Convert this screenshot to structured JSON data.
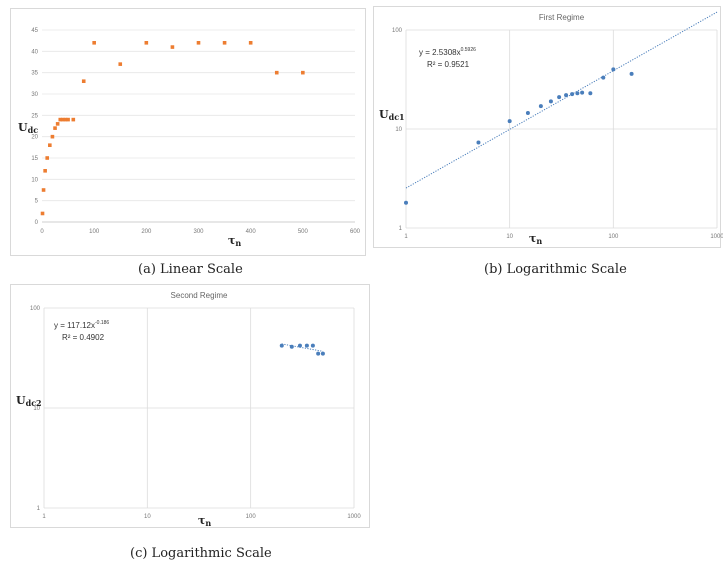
{
  "chart_data": [
    {
      "type": "scatter",
      "title": "",
      "xlabel": "τn",
      "ylabel": "Udc",
      "xlim": [
        0,
        600
      ],
      "ylim": [
        0,
        45
      ],
      "xticks": [
        "0",
        "100",
        "200",
        "300",
        "400",
        "500",
        "600"
      ],
      "yticks": [
        "0",
        "5",
        "10",
        "15",
        "20",
        "25",
        "30",
        "35",
        "40",
        "45"
      ],
      "grid": "horizontal",
      "color": "#ed7d31",
      "caption": "(a) Linear Scale",
      "series": [
        {
          "x": [
            1,
            3,
            6,
            10,
            15,
            20,
            25,
            30,
            35,
            40,
            45,
            50,
            60,
            80,
            100,
            150,
            200,
            250,
            300,
            350,
            400,
            450,
            500
          ],
          "y": [
            2,
            7.5,
            12,
            15,
            18,
            20,
            22,
            23,
            24,
            24,
            24,
            24,
            24,
            33,
            42,
            37,
            42,
            41,
            42,
            42,
            42,
            35,
            35
          ]
        }
      ]
    },
    {
      "type": "scatter",
      "title": "First Regime",
      "xlabel": "τn",
      "ylabel": "Udc1",
      "xscale": "log",
      "yscale": "log",
      "xlim": [
        1,
        1000
      ],
      "ylim": [
        1,
        100
      ],
      "xticks": [
        "1",
        "10",
        "100",
        "1000"
      ],
      "yticks": [
        "1",
        "10",
        "100"
      ],
      "grid": "major",
      "color": "#4a7ebb",
      "trendline": {
        "coef": 2.5308,
        "exp": 0.5926
      },
      "equation": "y = 2.5308x^0.5926",
      "r2": "R² = 0.9521",
      "caption": "(b) Logarithmic Scale",
      "series": [
        {
          "x": [
            1,
            5,
            10,
            15,
            20,
            25,
            30,
            35,
            40,
            45,
            50,
            60,
            80,
            100,
            150
          ],
          "y": [
            1.8,
            7.3,
            12,
            14.5,
            17,
            19,
            21,
            22,
            22.5,
            23,
            23.3,
            23,
            33,
            40,
            36
          ]
        }
      ]
    },
    {
      "type": "scatter",
      "title": "Second Regime",
      "xlabel": "τn",
      "ylabel": "Udc2",
      "xscale": "log",
      "yscale": "log",
      "xlim": [
        1,
        1000
      ],
      "ylim": [
        1,
        100
      ],
      "xticks": [
        "1",
        "10",
        "100",
        "1000"
      ],
      "yticks": [
        "1",
        "10",
        "100"
      ],
      "grid": "major",
      "color": "#4a7ebb",
      "trendline": {
        "coef": 117.12,
        "exp": -0.186,
        "xrange": [
          200,
          500
        ]
      },
      "equation": "y = 117.12x^-0.186",
      "r2": "R² = 0.4902",
      "caption": "(c) Logarithmic Scale",
      "series": [
        {
          "x": [
            200,
            250,
            300,
            350,
            400,
            450,
            500
          ],
          "y": [
            42,
            41,
            42,
            42,
            42,
            35,
            35
          ]
        }
      ]
    }
  ]
}
